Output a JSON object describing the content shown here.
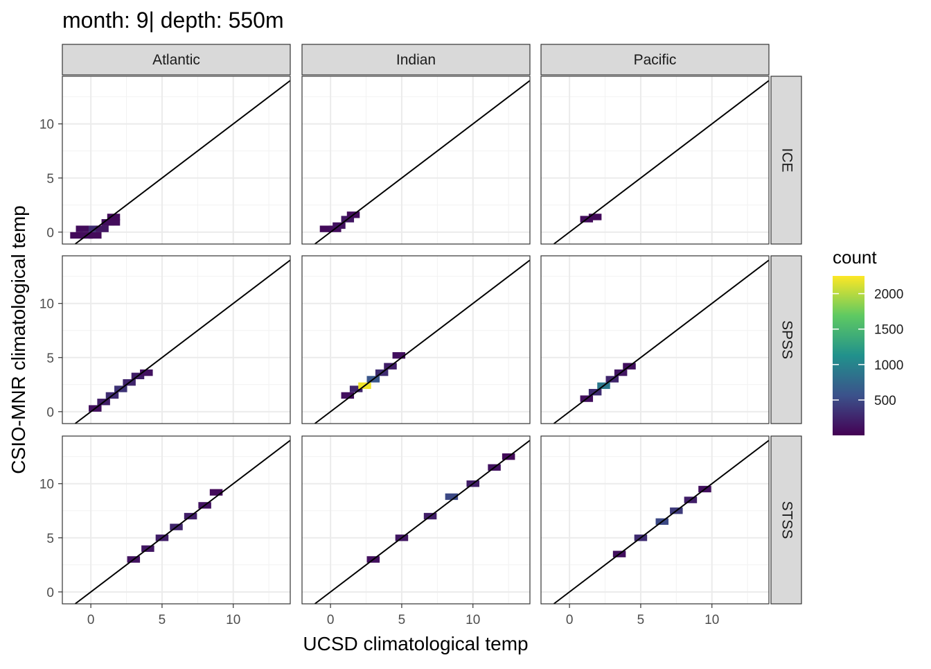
{
  "chart_data": {
    "type": "heatmap",
    "title": "month: 9| depth: 550m",
    "xlabel": "UCSD climatological temp",
    "ylabel": "CSIO-MNR climatological temp",
    "xlim": [
      -2,
      14
    ],
    "ylim": [
      -1.1,
      14.4
    ],
    "x_ticks": [
      0,
      5,
      10
    ],
    "y_ticks": [
      0,
      5,
      10
    ],
    "grid": true,
    "reference_line": "y = x",
    "columns": [
      "Atlantic",
      "Indian",
      "Pacific"
    ],
    "rows": [
      "ICE",
      "SPSS",
      "STSS"
    ],
    "legend": {
      "title": "count",
      "position": "right",
      "ticks": [
        500,
        1000,
        1500,
        2000
      ],
      "min": 1,
      "max": 2250,
      "colormap": "viridis"
    },
    "panels": [
      {
        "column": "Atlantic",
        "row": "ICE",
        "bins": [
          [
            -1,
            -0.3,
            60
          ],
          [
            -0.3,
            -0.3,
            80
          ],
          [
            0.3,
            -0.3,
            60
          ],
          [
            -0.6,
            0.3,
            80
          ],
          [
            0.3,
            0.3,
            300
          ],
          [
            0.8,
            0.3,
            150
          ],
          [
            1.2,
            0.9,
            100
          ],
          [
            1.6,
            0.9,
            80
          ],
          [
            1.6,
            1.4,
            60
          ]
        ]
      },
      {
        "column": "Indian",
        "row": "ICE",
        "bins": [
          [
            -0.3,
            0.3,
            60
          ],
          [
            0.3,
            0.3,
            80
          ],
          [
            0.6,
            0.6,
            120
          ],
          [
            1.2,
            1.2,
            150
          ],
          [
            1.6,
            1.6,
            80
          ]
        ]
      },
      {
        "column": "Pacific",
        "row": "ICE",
        "bins": [
          [
            1.2,
            1.2,
            80
          ],
          [
            1.8,
            1.4,
            60
          ]
        ]
      },
      {
        "column": "Atlantic",
        "row": "SPSS",
        "bins": [
          [
            0.3,
            0.3,
            100
          ],
          [
            0.9,
            0.9,
            200
          ],
          [
            1.5,
            1.5,
            300
          ],
          [
            2.1,
            2.1,
            350
          ],
          [
            2.7,
            2.7,
            250
          ],
          [
            3.3,
            3.3,
            200
          ],
          [
            3.9,
            3.6,
            120
          ]
        ]
      },
      {
        "column": "Indian",
        "row": "SPSS",
        "bins": [
          [
            1.2,
            1.5,
            100
          ],
          [
            1.8,
            2.1,
            250
          ],
          [
            2.4,
            2.4,
            2200
          ],
          [
            3.0,
            3.0,
            600
          ],
          [
            3.6,
            3.6,
            300
          ],
          [
            4.2,
            4.2,
            200
          ],
          [
            4.8,
            5.2,
            100
          ]
        ]
      },
      {
        "column": "Pacific",
        "row": "SPSS",
        "bins": [
          [
            1.2,
            1.2,
            100
          ],
          [
            1.8,
            1.8,
            300
          ],
          [
            2.4,
            2.4,
            900
          ],
          [
            3.0,
            3.0,
            250
          ],
          [
            3.6,
            3.6,
            150
          ],
          [
            4.2,
            4.2,
            100
          ]
        ]
      },
      {
        "column": "Atlantic",
        "row": "STSS",
        "bins": [
          [
            3.0,
            3.0,
            120
          ],
          [
            4.0,
            4.0,
            150
          ],
          [
            5.0,
            5.0,
            200
          ],
          [
            6.0,
            6.0,
            250
          ],
          [
            7.0,
            7.0,
            200
          ],
          [
            8.0,
            8.0,
            120
          ],
          [
            8.8,
            9.2,
            60
          ]
        ]
      },
      {
        "column": "Indian",
        "row": "STSS",
        "bins": [
          [
            3.0,
            3.0,
            100
          ],
          [
            5.0,
            5.0,
            150
          ],
          [
            7.0,
            7.0,
            200
          ],
          [
            8.5,
            8.8,
            500
          ],
          [
            10.0,
            10.0,
            200
          ],
          [
            11.5,
            11.5,
            120
          ],
          [
            12.5,
            12.5,
            60
          ]
        ]
      },
      {
        "column": "Pacific",
        "row": "STSS",
        "bins": [
          [
            3.5,
            3.5,
            100
          ],
          [
            5.0,
            5.0,
            300
          ],
          [
            6.5,
            6.5,
            500
          ],
          [
            7.5,
            7.5,
            400
          ],
          [
            8.5,
            8.5,
            200
          ],
          [
            9.5,
            9.5,
            100
          ]
        ]
      }
    ]
  }
}
